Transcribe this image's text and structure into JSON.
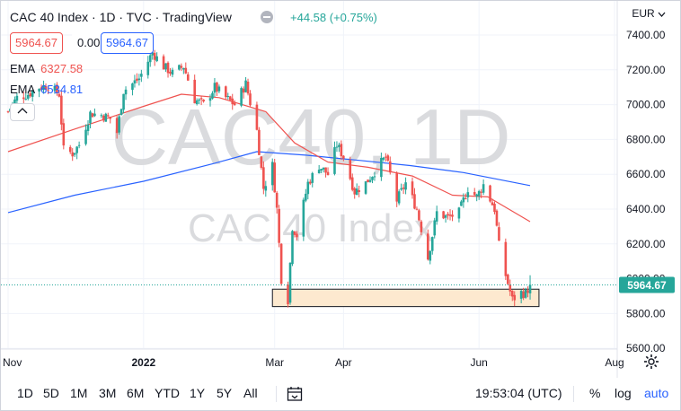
{
  "header": {
    "title": "CAC 40 Index · 1D · TVC · TradingView",
    "change": "+44.58 (+0.75%)",
    "ohlc_boxes": [
      "5964.67",
      "0.00",
      "5964.67"
    ],
    "ema1_label": "EMA",
    "ema1_value": "6327.58",
    "ema2_label": "EMA",
    "ema2_value": "6534.81",
    "currency": "EUR"
  },
  "watermark": {
    "symbol": "CAC40, 1D",
    "name": "CAC 40 Index"
  },
  "colors": {
    "up": "#26a69a",
    "down": "#ef5350",
    "ema_fast": "#ef5350",
    "ema_slow": "#2962ff",
    "zone_fill": "#fde9cf",
    "zone_stroke": "#131722"
  },
  "price_badge": "5964.67",
  "toolbar": {
    "timeframes": [
      "1D",
      "5D",
      "1M",
      "3M",
      "6M",
      "YTD",
      "1Y",
      "5Y",
      "All"
    ],
    "calendar_icon": "calendar-range-icon",
    "clock": "19:53:04 (UTC)",
    "percent": "%",
    "log": "log",
    "auto": "auto",
    "settings_icon": "gear-icon"
  },
  "chart_data": {
    "type": "candlestick",
    "y_ticks": [
      7400,
      7200,
      7000,
      6800,
      6600,
      6400,
      6200,
      6000,
      5800,
      5600
    ],
    "y_tick_labels": [
      "7400.00",
      "7200.00",
      "7000.00",
      "6800.00",
      "6600.00",
      "6400.00",
      "6200.00",
      "6000.00",
      "5800.00",
      "5600.00"
    ],
    "ylim": [
      5600,
      7400
    ],
    "x_labels": [
      "Nov",
      "2022",
      "Mar",
      "Apr",
      "Jun",
      "Aug"
    ],
    "x_label_dates": [
      "2021-11-01",
      "2022-01-01",
      "2022-03-01",
      "2022-04-01",
      "2022-06-01",
      "2022-08-01"
    ],
    "xlim": [
      "2021-11-01",
      "2022-08-01"
    ],
    "last_price": 5964.67,
    "closes": [
      {
        "date": "2021-11-01",
        "close": 6960
      },
      {
        "date": "2021-11-05",
        "close": 7040
      },
      {
        "date": "2021-11-10",
        "close": 7060
      },
      {
        "date": "2021-11-15",
        "close": 7100
      },
      {
        "date": "2021-11-19",
        "close": 7110
      },
      {
        "date": "2021-11-24",
        "close": 7060
      },
      {
        "date": "2021-11-26",
        "close": 6740
      },
      {
        "date": "2021-11-30",
        "close": 6720
      },
      {
        "date": "2021-12-03",
        "close": 6770
      },
      {
        "date": "2021-12-08",
        "close": 6950
      },
      {
        "date": "2021-12-13",
        "close": 6940
      },
      {
        "date": "2021-12-17",
        "close": 6920
      },
      {
        "date": "2021-12-20",
        "close": 6840
      },
      {
        "date": "2021-12-23",
        "close": 7080
      },
      {
        "date": "2021-12-30",
        "close": 7150
      },
      {
        "date": "2022-01-05",
        "close": 7300
      },
      {
        "date": "2022-01-10",
        "close": 7220
      },
      {
        "date": "2022-01-14",
        "close": 7180
      },
      {
        "date": "2022-01-19",
        "close": 7220
      },
      {
        "date": "2022-01-24",
        "close": 7030
      },
      {
        "date": "2022-01-28",
        "close": 7000
      },
      {
        "date": "2022-02-02",
        "close": 7100
      },
      {
        "date": "2022-02-07",
        "close": 7040
      },
      {
        "date": "2022-02-11",
        "close": 7000
      },
      {
        "date": "2022-02-16",
        "close": 7120
      },
      {
        "date": "2022-02-21",
        "close": 6850
      },
      {
        "date": "2022-02-24",
        "close": 6520
      },
      {
        "date": "2022-02-28",
        "close": 6650
      },
      {
        "date": "2022-03-02",
        "close": 6400
      },
      {
        "date": "2022-03-04",
        "close": 6000
      },
      {
        "date": "2022-03-07",
        "close": 5880
      },
      {
        "date": "2022-03-09",
        "close": 6300
      },
      {
        "date": "2022-03-11",
        "close": 6250
      },
      {
        "date": "2022-03-16",
        "close": 6550
      },
      {
        "date": "2022-03-21",
        "close": 6650
      },
      {
        "date": "2022-03-25",
        "close": 6600
      },
      {
        "date": "2022-03-29",
        "close": 6770
      },
      {
        "date": "2022-04-01",
        "close": 6700
      },
      {
        "date": "2022-04-06",
        "close": 6500
      },
      {
        "date": "2022-04-11",
        "close": 6550
      },
      {
        "date": "2022-04-14",
        "close": 6600
      },
      {
        "date": "2022-04-20",
        "close": 6700
      },
      {
        "date": "2022-04-25",
        "close": 6450
      },
      {
        "date": "2022-04-29",
        "close": 6550
      },
      {
        "date": "2022-05-04",
        "close": 6400
      },
      {
        "date": "2022-05-09",
        "close": 6120
      },
      {
        "date": "2022-05-13",
        "close": 6380
      },
      {
        "date": "2022-05-18",
        "close": 6350
      },
      {
        "date": "2022-05-23",
        "close": 6380
      },
      {
        "date": "2022-05-27",
        "close": 6520
      },
      {
        "date": "2022-05-31",
        "close": 6470
      },
      {
        "date": "2022-06-03",
        "close": 6540
      },
      {
        "date": "2022-06-08",
        "close": 6400
      },
      {
        "date": "2022-06-10",
        "close": 6190
      },
      {
        "date": "2022-06-13",
        "close": 6020
      },
      {
        "date": "2022-06-16",
        "close": 5880
      },
      {
        "date": "2022-06-20",
        "close": 5920
      },
      {
        "date": "2022-06-22",
        "close": 5916
      },
      {
        "date": "2022-06-24",
        "close": 5964.67
      }
    ],
    "ema_fast": [
      {
        "date": "2021-11-01",
        "value": 6730
      },
      {
        "date": "2021-12-01",
        "value": 6860
      },
      {
        "date": "2022-01-01",
        "value": 6990
      },
      {
        "date": "2022-01-18",
        "value": 7060
      },
      {
        "date": "2022-02-04",
        "value": 7040
      },
      {
        "date": "2022-02-25",
        "value": 6960
      },
      {
        "date": "2022-03-10",
        "value": 6780
      },
      {
        "date": "2022-03-25",
        "value": 6670
      },
      {
        "date": "2022-04-12",
        "value": 6640
      },
      {
        "date": "2022-05-02",
        "value": 6590
      },
      {
        "date": "2022-05-20",
        "value": 6480
      },
      {
        "date": "2022-06-05",
        "value": 6470
      },
      {
        "date": "2022-06-24",
        "value": 6327.58
      }
    ],
    "ema_slow": [
      {
        "date": "2021-11-01",
        "value": 6380
      },
      {
        "date": "2021-12-01",
        "value": 6480
      },
      {
        "date": "2022-01-01",
        "value": 6560
      },
      {
        "date": "2022-02-01",
        "value": 6660
      },
      {
        "date": "2022-02-21",
        "value": 6730
      },
      {
        "date": "2022-03-15",
        "value": 6710
      },
      {
        "date": "2022-04-08",
        "value": 6680
      },
      {
        "date": "2022-05-01",
        "value": 6650
      },
      {
        "date": "2022-05-25",
        "value": 6610
      },
      {
        "date": "2022-06-24",
        "value": 6534.81
      }
    ],
    "zone": {
      "x0": "2022-02-28",
      "x1": "2022-06-28",
      "y0": 5840,
      "y1": 5940
    }
  }
}
